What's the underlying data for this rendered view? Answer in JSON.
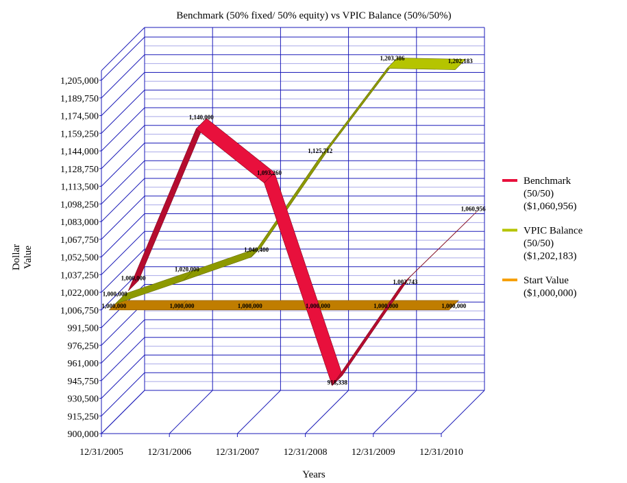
{
  "chart_data": {
    "type": "line",
    "title": "Benchmark (50% fixed/ 50% equity) vs VPIC Balance (50%/50%)",
    "xlabel": "Years",
    "ylabel": "Dollar Value",
    "categories": [
      "12/31/2005",
      "12/31/2006",
      "12/31/2007",
      "12/31/2008",
      "12/31/2009",
      "12/31/2010"
    ],
    "y_ticks": [
      "900,000",
      "915,250",
      "930,500",
      "945,750",
      "961,000",
      "976,250",
      "991,500",
      "1,006,750",
      "1,022,000",
      "1,037,250",
      "1,052,500",
      "1,067,750",
      "1,083,000",
      "1,098,250",
      "1,113,500",
      "1,128,750",
      "1,144,000",
      "1,159,250",
      "1,174,500",
      "1,189,750",
      "1,205,000"
    ],
    "ylim": [
      900000,
      1205000
    ],
    "grid": true,
    "legend_position": "right",
    "series": [
      {
        "name": "Benchmark (50/50) ($1,060,956)",
        "legend_lines": [
          "Benchmark",
          "(50/50)",
          "($1,060,956)"
        ],
        "color": "#e8103c",
        "values": [
          1000000,
          1140000,
          1093260,
          918338,
          1003743,
          1060956
        ],
        "labels": [
          "1,000,000",
          "1,140,000",
          "1,093,260",
          "918,338",
          "1,003,743",
          "1,060,956"
        ]
      },
      {
        "name": "VPIC Balance (50/50) ($1,202,183)",
        "legend_lines": [
          "VPIC Balance",
          "(50/50)",
          "($1,202,183)"
        ],
        "color": "#b5c400",
        "values": [
          1000000,
          1020000,
          1040400,
          1125712,
          1203386,
          1202183
        ],
        "labels": [
          "1,000,000",
          "1,020,000",
          "1,040,400",
          "1,125,712",
          "1,203,386",
          "1,202,183"
        ]
      },
      {
        "name": "Start Value ($1,000,000)",
        "legend_lines": [
          "Start Value",
          "($1,000,000)"
        ],
        "color": "#f6a000",
        "values": [
          1000000,
          1000000,
          1000000,
          1000000,
          1000000,
          1000000
        ],
        "labels": [
          "1,000,000",
          "1,000,000",
          "1,000,000",
          "1,000,000",
          "1,000,000",
          "1,000,000"
        ]
      }
    ]
  }
}
